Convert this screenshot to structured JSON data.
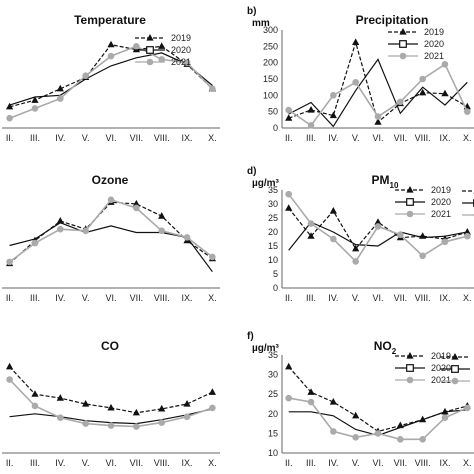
{
  "figure": {
    "months": [
      "II.",
      "III.",
      "IV.",
      "V.",
      "VI.",
      "VII.",
      "VIII.",
      "IX.",
      "X."
    ],
    "years": [
      "2019",
      "2020",
      "2021"
    ],
    "colors": {
      "y2019": "#111111",
      "y2020": "#111111",
      "y2021": "#aaaaaa"
    }
  },
  "chart_data": [
    {
      "id": "temperature",
      "type": "line",
      "title": "Temperature",
      "panel_label": "",
      "ylabel": "",
      "ylim": [
        0,
        30
      ],
      "yticks": [],
      "categories": [
        "II.",
        "III.",
        "IV.",
        "V.",
        "VI.",
        "VII.",
        "VIII.",
        "IX.",
        "X."
      ],
      "series": [
        {
          "name": "2019",
          "values": [
            6.5,
            8.5,
            12,
            15.5,
            25.5,
            24,
            25,
            19.5,
            12
          ]
        },
        {
          "name": "2020",
          "values": [
            7,
            9.5,
            10,
            15,
            19,
            21.5,
            23,
            19.5,
            13
          ]
        },
        {
          "name": "2021",
          "values": [
            3,
            6,
            9,
            16,
            22,
            25,
            21,
            20,
            12
          ]
        }
      ]
    },
    {
      "id": "precipitation",
      "type": "line",
      "title": "Precipitation",
      "panel_label": "b)",
      "ylabel": "mm",
      "ylim": [
        0,
        300
      ],
      "yticks": [
        "0",
        "50",
        "100",
        "150",
        "200",
        "250",
        "300"
      ],
      "categories": [
        "II.",
        "III.",
        "IV.",
        "V.",
        "VI.",
        "VII.",
        "VIII.",
        "IX.",
        "X."
      ],
      "series": [
        {
          "name": "2019",
          "values": [
            30,
            55,
            38,
            262,
            18,
            75,
            108,
            105,
            65
          ]
        },
        {
          "name": "2020",
          "values": [
            43,
            78,
            5,
            115,
            210,
            45,
            125,
            70,
            140
          ]
        },
        {
          "name": "2021",
          "values": [
            55,
            8,
            100,
            140,
            35,
            80,
            150,
            195,
            50
          ]
        }
      ]
    },
    {
      "id": "ozone",
      "type": "line",
      "title": "Ozone",
      "panel_label": "",
      "ylabel": "",
      "ylim": [
        0,
        120
      ],
      "yticks": [],
      "categories": [
        "II.",
        "III.",
        "IV.",
        "V.",
        "VI.",
        "VII.",
        "VIII.",
        "IX.",
        "X."
      ],
      "series": [
        {
          "name": "2019",
          "values": [
            30,
            58,
            82,
            72,
            105,
            103,
            88,
            58,
            36
          ]
        },
        {
          "name": "2020",
          "values": [
            52,
            60,
            80,
            68,
            76,
            68,
            68,
            62,
            20
          ]
        },
        {
          "name": "2021",
          "values": [
            32,
            55,
            72,
            70,
            108,
            98,
            70,
            62,
            38
          ]
        }
      ]
    },
    {
      "id": "pm10",
      "type": "line",
      "title": "PM10",
      "panel_label": "d)",
      "ylabel": "µg/m³",
      "ylim": [
        0,
        35
      ],
      "yticks": [
        "0",
        "5",
        "10",
        "15",
        "20",
        "25",
        "30",
        "35"
      ],
      "categories": [
        "II.",
        "III.",
        "IV.",
        "V.",
        "VI.",
        "VII.",
        "VIII.",
        "IX.",
        "X."
      ],
      "series": [
        {
          "name": "2019",
          "values": [
            28.5,
            18.5,
            27.5,
            14,
            23.5,
            18,
            18.5,
            17.5,
            20
          ]
        },
        {
          "name": "2020",
          "values": [
            13.5,
            23.5,
            20,
            15.5,
            15,
            20,
            18,
            18.5,
            20
          ]
        },
        {
          "name": "2021",
          "values": [
            33.5,
            23,
            17.5,
            9.5,
            22,
            19,
            11.5,
            16.5,
            18.5
          ]
        }
      ]
    },
    {
      "id": "co",
      "type": "line",
      "title": "CO",
      "panel_label": "",
      "ylabel": "",
      "ylim": [
        0,
        1
      ],
      "yticks": [],
      "categories": [
        "II.",
        "III.",
        "IV.",
        "V.",
        "VI.",
        "VII.",
        "VIII.",
        "IX.",
        "X."
      ],
      "series": [
        {
          "name": "2019",
          "values": [
            0.88,
            0.6,
            0.56,
            0.5,
            0.46,
            0.41,
            0.45,
            0.5,
            0.62
          ]
        },
        {
          "name": "2020",
          "values": [
            0.37,
            0.4,
            0.37,
            0.33,
            0.31,
            0.3,
            0.34,
            0.39,
            0.45
          ]
        },
        {
          "name": "2021",
          "values": [
            0.75,
            0.48,
            0.36,
            0.3,
            0.28,
            0.27,
            0.31,
            0.37,
            0.46
          ]
        }
      ]
    },
    {
      "id": "no2",
      "type": "line",
      "title": "NO2",
      "panel_label": "f)",
      "ylabel": "µg/m³",
      "ylim": [
        10,
        35
      ],
      "yticks": [
        "10",
        "15",
        "20",
        "25",
        "30",
        "35"
      ],
      "categories": [
        "II.",
        "III.",
        "IV.",
        "V.",
        "VI.",
        "VII.",
        "VIII.",
        "IX.",
        "X."
      ],
      "series": [
        {
          "name": "2019",
          "values": [
            32,
            25.5,
            23,
            19.5,
            15.5,
            17,
            18.5,
            20.5,
            22
          ]
        },
        {
          "name": "2020",
          "values": [
            20.5,
            20.5,
            19.5,
            16,
            14.5,
            16.5,
            18.5,
            20.5,
            21
          ]
        },
        {
          "name": "2021",
          "values": [
            24,
            23,
            15.5,
            14,
            15,
            13.5,
            13.5,
            19,
            21.5
          ]
        }
      ]
    }
  ]
}
